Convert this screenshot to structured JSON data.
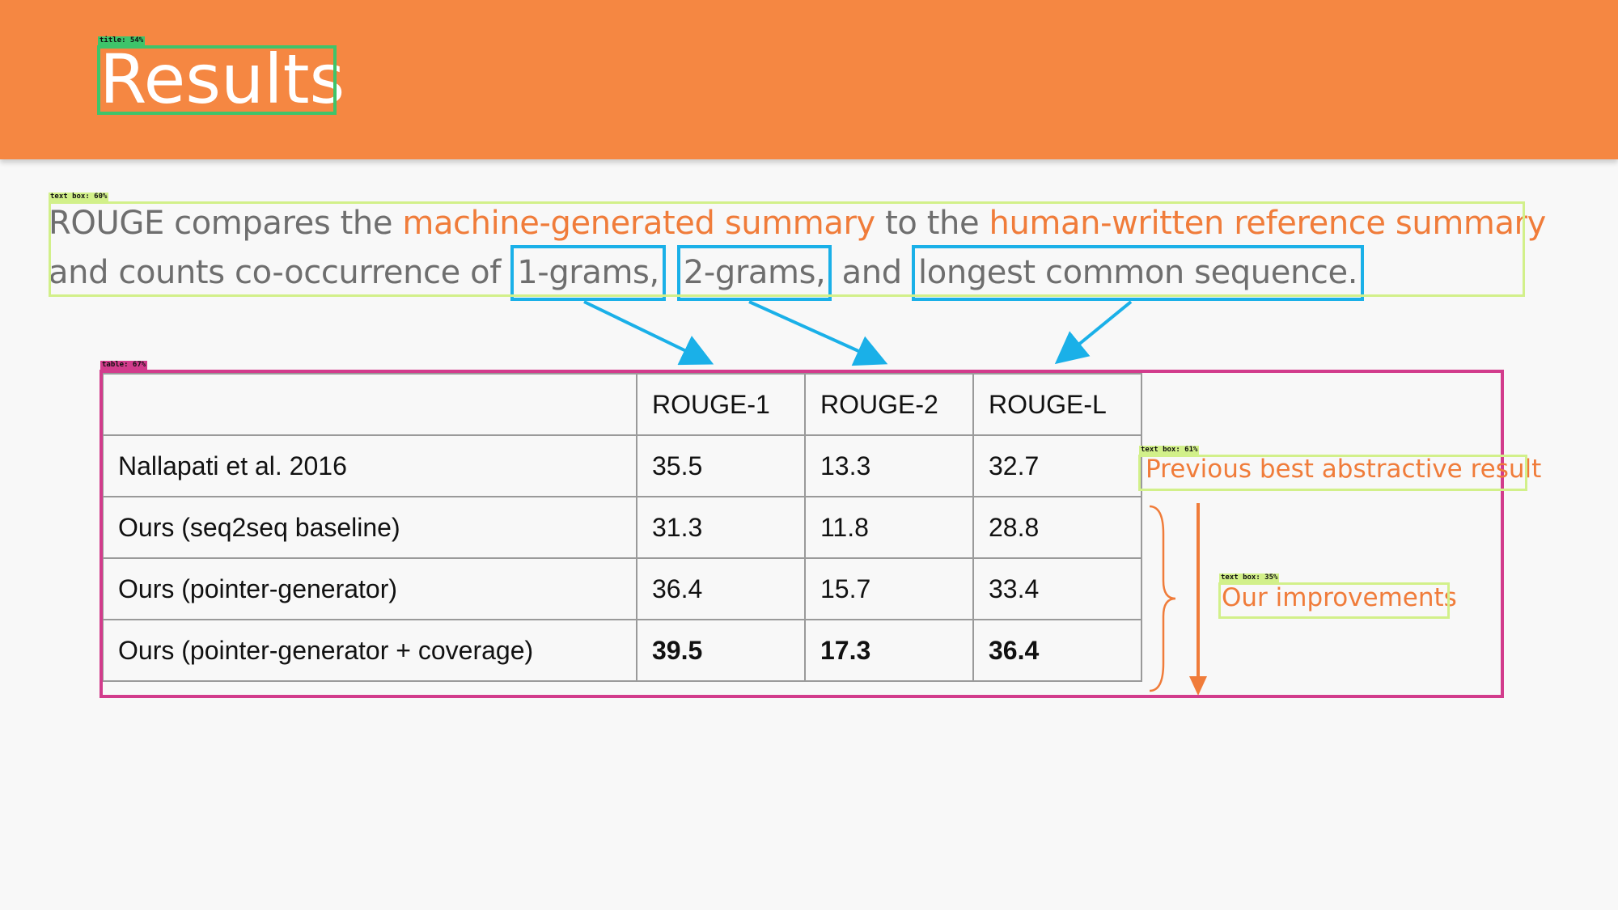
{
  "slide": {
    "title": "Results",
    "intro": {
      "t1": "ROUGE compares the ",
      "t2": "machine-generated summary",
      "t3": " to the ",
      "t4": "human-written reference summary",
      "t5": "and counts co-occurrence of ",
      "k1": "1-grams,",
      "k2": "2-grams,",
      "t6": " and ",
      "k3": "longest common sequence."
    },
    "table": {
      "header": [
        "",
        "ROUGE-1",
        "ROUGE-2",
        "ROUGE-L"
      ],
      "rows": [
        {
          "name": "Nallapati et al. 2016",
          "r1": "35.5",
          "r2": "13.3",
          "rl": "32.7"
        },
        {
          "name": "Ours (seq2seq baseline)",
          "r1": "31.3",
          "r2": "11.8",
          "rl": "28.8"
        },
        {
          "name": "Ours (pointer-generator)",
          "r1": "36.4",
          "r2": "15.7",
          "rl": "33.4"
        },
        {
          "name": "Ours (pointer-generator + coverage)",
          "r1": "39.5",
          "r2": "17.3",
          "rl": "36.4"
        }
      ]
    },
    "notes": {
      "previous": "Previous best abstractive result",
      "improvements": "Our improvements"
    }
  },
  "detections": {
    "title": "title: 54%",
    "text_box_main": "text box: 60%",
    "table": "table: 67%",
    "text_box_previous": "text box: 61%",
    "text_box_improvements": "text box: 35%"
  },
  "colors": {
    "header": "#f58742",
    "highlight": "#f07c3a",
    "keyword_box": "#1ab0e8",
    "det_title": "#3ec46a",
    "det_text": "#d2f08a",
    "det_table": "#d23c8c"
  }
}
